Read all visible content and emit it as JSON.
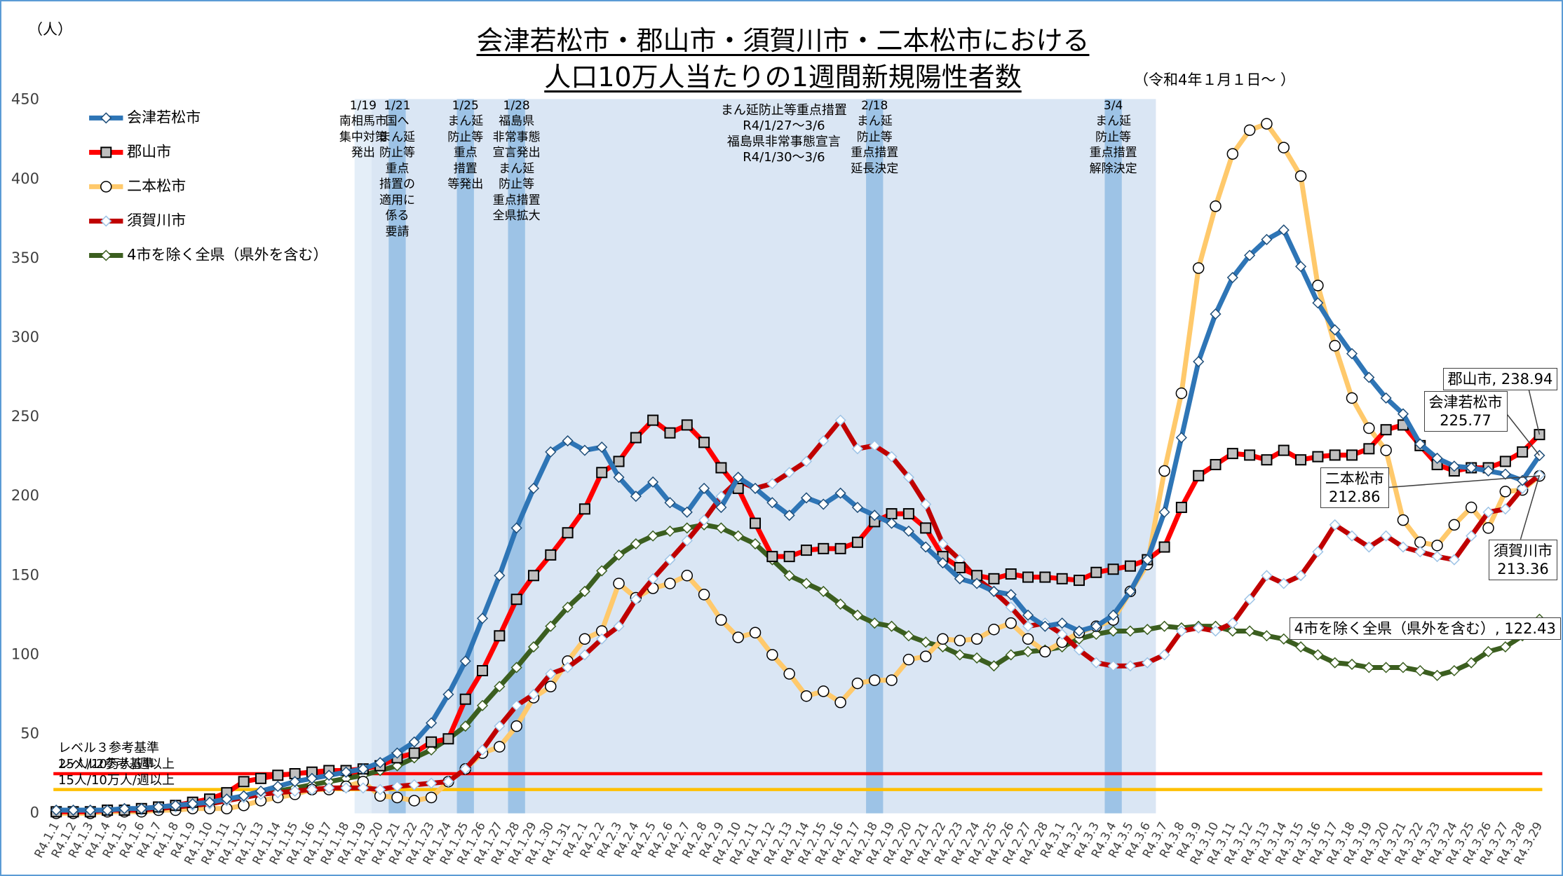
{
  "chart_data": {
    "type": "line",
    "title": "会津若松市・郡山市・須賀川市・二本松市における\n人口10万人当たりの1週間新規陽性者数",
    "subtitle": "（令和4年１月１日～ ）",
    "y_label": "（人）",
    "categories": [
      "R4.1.1",
      "R4.1.2",
      "R4.1.3",
      "R4.1.4",
      "R4.1.5",
      "R4.1.6",
      "R4.1.7",
      "R4.1.8",
      "R4.1.9",
      "R4.1.10",
      "R4.1.11",
      "R4.1.12",
      "R4.1.13",
      "R4.1.14",
      "R4.1.15",
      "R4.1.16",
      "R4.1.17",
      "R4.1.18",
      "R4.1.19",
      "R4.1.20",
      "R4.1.21",
      "R4.1.22",
      "R4.1.23",
      "R4.1.24",
      "R4.1.25",
      "R4.1.26",
      "R4.1.27",
      "R4.1.28",
      "R4.1.29",
      "R4.1.30",
      "R4.1.31",
      "R4.2.1",
      "R4.2.2",
      "R4.2.3",
      "R4.2.4",
      "R4.2.5",
      "R4.2.6",
      "R4.2.7",
      "R4.2.8",
      "R4.2.9",
      "R4.2.10",
      "R4.2.11",
      "R4.2.12",
      "R4.2.13",
      "R4.2.14",
      "R4.2.15",
      "R4.2.16",
      "R4.2.17",
      "R4.2.18",
      "R4.2.19",
      "R4.2.20",
      "R4.2.21",
      "R4.2.22",
      "R4.2.23",
      "R4.2.24",
      "R4.2.25",
      "R4.2.26",
      "R4.2.27",
      "R4.2.28",
      "R4.3.1",
      "R4.3.2",
      "R4.3.3",
      "R4.3.4",
      "R4.3.5",
      "R4.3.6",
      "R4.3.7",
      "R4.3.8",
      "R4.3.9",
      "R4.3.10",
      "R4.3.11",
      "R4.3.12",
      "R4.3.13",
      "R4.3.14",
      "R4.3.15",
      "R4.3.16",
      "R4.3.17",
      "R4.3.18",
      "R4.3.19",
      "R4.3.20",
      "R4.3.21",
      "R4.3.22",
      "R4.3.23",
      "R4.3.24",
      "R4.3.25",
      "R4.3.26",
      "R4.3.27",
      "R4.3.28",
      "R4.3.29"
    ],
    "series": [
      {
        "name": "会津若松市",
        "color": "#2e75b6",
        "marker": "diamond",
        "marker_fill": "#ffffff",
        "marker_stroke": "#1f4e79",
        "values": [
          2,
          2,
          2,
          2,
          3,
          3,
          4,
          5,
          6,
          7,
          9,
          11,
          14,
          17,
          20,
          22,
          24,
          26,
          28,
          32,
          38,
          45,
          57,
          75,
          96,
          123,
          150,
          180,
          205,
          228,
          235,
          229,
          231,
          212,
          200,
          209,
          196,
          190,
          205,
          193,
          212,
          205,
          196,
          188,
          199,
          195,
          202,
          193,
          188,
          183,
          178,
          168,
          158,
          148,
          145,
          140,
          138,
          125,
          118,
          120,
          115,
          118,
          125,
          140,
          160,
          190,
          237,
          285,
          315,
          338,
          352,
          362,
          368,
          345,
          322,
          305,
          290,
          275,
          262,
          252,
          233,
          224,
          219,
          218,
          216,
          214,
          210,
          225.77
        ],
        "value_labels": [
          null,
          null,
          null,
          null,
          null,
          null,
          null,
          null,
          null,
          null,
          null,
          null,
          null,
          null,
          null,
          null,
          null,
          null,
          null,
          null,
          null,
          null,
          null,
          null,
          null,
          null,
          null,
          null,
          null,
          null,
          null,
          null,
          null,
          null,
          null,
          null,
          null,
          null,
          null,
          null,
          null,
          null,
          null,
          null,
          null,
          null,
          null,
          null,
          null,
          null,
          null,
          null,
          null,
          null,
          null,
          null,
          null,
          null,
          null,
          null,
          null,
          null,
          null,
          null,
          null,
          null,
          null,
          null,
          null,
          null,
          null,
          null,
          null,
          null,
          null,
          null,
          null,
          null,
          null,
          null,
          null,
          null,
          null,
          null,
          null,
          null,
          null,
          "会津若松市\n225.77"
        ]
      },
      {
        "name": "郡山市",
        "color": "#ff0000",
        "marker": "square",
        "marker_fill": "#bfbfbf",
        "marker_stroke": "#000000",
        "values": [
          1,
          1,
          1,
          2,
          2,
          3,
          4,
          5,
          7,
          9,
          13,
          20,
          22,
          24,
          25,
          26,
          27,
          27,
          28,
          30,
          35,
          38,
          45,
          47,
          72,
          90,
          112,
          135,
          150,
          163,
          177,
          192,
          215,
          222,
          237,
          248,
          240,
          245,
          234,
          218,
          205,
          183,
          162,
          162,
          166,
          167,
          167,
          171,
          184,
          189,
          189,
          180,
          162,
          155,
          150,
          148,
          151,
          149,
          149,
          148,
          147,
          152,
          154,
          156,
          160,
          168,
          193,
          213,
          220,
          227,
          226,
          223,
          229,
          223,
          225,
          226,
          226,
          230,
          242,
          245,
          232,
          220,
          216,
          218,
          218,
          222,
          228,
          238.94
        ],
        "value_labels": [
          null,
          null,
          null,
          null,
          null,
          null,
          null,
          null,
          null,
          null,
          null,
          null,
          null,
          null,
          null,
          null,
          null,
          null,
          null,
          null,
          null,
          null,
          null,
          null,
          null,
          null,
          null,
          null,
          null,
          null,
          null,
          null,
          null,
          null,
          null,
          null,
          null,
          null,
          null,
          null,
          null,
          null,
          null,
          null,
          null,
          null,
          null,
          null,
          null,
          null,
          null,
          null,
          null,
          null,
          null,
          null,
          null,
          null,
          null,
          null,
          null,
          null,
          null,
          null,
          null,
          null,
          null,
          null,
          null,
          null,
          null,
          null,
          null,
          null,
          null,
          null,
          null,
          null,
          null,
          null,
          null,
          null,
          null,
          null,
          null,
          null,
          null,
          "郡山市, 238.94"
        ]
      },
      {
        "name": "二本松市",
        "color": "#ffc96b",
        "marker": "circle",
        "marker_fill": "#ffffff",
        "marker_stroke": "#000000",
        "values": [
          0,
          0,
          0,
          1,
          1,
          1,
          2,
          2,
          3,
          3,
          3,
          5,
          8,
          10,
          12,
          15,
          15,
          17,
          20,
          11,
          10,
          8,
          10,
          20,
          28,
          38,
          42,
          55,
          73,
          80,
          96,
          110,
          115,
          145,
          136,
          142,
          145,
          150,
          138,
          122,
          111,
          114,
          100,
          88,
          74,
          77,
          70,
          82,
          84,
          84,
          97,
          99,
          110,
          109,
          110,
          116,
          120,
          110,
          102,
          108,
          114,
          118,
          122,
          140,
          157,
          216,
          265,
          344,
          383,
          416,
          431,
          435,
          420,
          402,
          333,
          295,
          262,
          243,
          229,
          185,
          171,
          169,
          182,
          193,
          180,
          203,
          204,
          212.86
        ],
        "value_labels": [
          null,
          null,
          null,
          null,
          null,
          null,
          null,
          null,
          null,
          null,
          null,
          null,
          null,
          null,
          null,
          null,
          null,
          null,
          null,
          null,
          null,
          null,
          null,
          null,
          null,
          null,
          null,
          null,
          null,
          null,
          null,
          null,
          null,
          null,
          null,
          null,
          null,
          null,
          null,
          null,
          null,
          null,
          null,
          null,
          null,
          null,
          null,
          null,
          null,
          null,
          null,
          null,
          null,
          null,
          null,
          null,
          null,
          null,
          null,
          null,
          null,
          null,
          null,
          null,
          null,
          null,
          null,
          null,
          null,
          null,
          null,
          null,
          null,
          null,
          null,
          null,
          null,
          null,
          null,
          null,
          null,
          null,
          null,
          null,
          null,
          null,
          null,
          "二本松市\n212.86"
        ]
      },
      {
        "name": "須賀川市",
        "color": "#c00000",
        "marker": "diamond",
        "marker_fill": "#ffffff",
        "marker_stroke": "#9dc3e6",
        "values": [
          1,
          1,
          1,
          2,
          2,
          2,
          3,
          4,
          5,
          6,
          8,
          10,
          12,
          13,
          14,
          15,
          16,
          16,
          16,
          15,
          17,
          18,
          19,
          20,
          28,
          40,
          55,
          68,
          75,
          88,
          92,
          100,
          110,
          118,
          135,
          148,
          160,
          172,
          185,
          200,
          210,
          205,
          208,
          215,
          222,
          235,
          248,
          230,
          232,
          225,
          212,
          195,
          170,
          160,
          148,
          140,
          130,
          118,
          120,
          113,
          103,
          95,
          93,
          93,
          95,
          100,
          115,
          117,
          115,
          120,
          135,
          150,
          145,
          150,
          165,
          182,
          175,
          168,
          175,
          168,
          165,
          162,
          160,
          175,
          190,
          192,
          205,
          213.36
        ],
        "value_labels": [
          null,
          null,
          null,
          null,
          null,
          null,
          null,
          null,
          null,
          null,
          null,
          null,
          null,
          null,
          null,
          null,
          null,
          null,
          null,
          null,
          null,
          null,
          null,
          null,
          null,
          null,
          null,
          null,
          null,
          null,
          null,
          null,
          null,
          null,
          null,
          null,
          null,
          null,
          null,
          null,
          null,
          null,
          null,
          null,
          null,
          null,
          null,
          null,
          null,
          null,
          null,
          null,
          null,
          null,
          null,
          null,
          null,
          null,
          null,
          null,
          null,
          null,
          null,
          null,
          null,
          null,
          null,
          null,
          null,
          null,
          null,
          null,
          null,
          null,
          null,
          null,
          null,
          null,
          null,
          null,
          null,
          null,
          null,
          null,
          null,
          null,
          null,
          "須賀川市\n213.36"
        ]
      },
      {
        "name": "4市を除く全県（県外を含む）",
        "color": "#3b5e1f",
        "marker": "diamond",
        "marker_fill": "#ffffff",
        "marker_stroke": "#3b5e1f",
        "values": [
          1,
          1,
          1,
          1,
          2,
          2,
          3,
          4,
          5,
          6,
          8,
          10,
          12,
          14,
          16,
          18,
          20,
          22,
          24,
          27,
          30,
          35,
          40,
          47,
          55,
          68,
          80,
          92,
          105,
          118,
          130,
          140,
          153,
          163,
          170,
          175,
          178,
          180,
          182,
          180,
          175,
          170,
          160,
          150,
          145,
          140,
          132,
          125,
          120,
          118,
          112,
          108,
          105,
          100,
          98,
          93,
          100,
          102,
          103,
          105,
          110,
          113,
          115,
          115,
          116,
          118,
          117,
          118,
          118,
          115,
          115,
          112,
          110,
          105,
          100,
          95,
          94,
          92,
          92,
          92,
          90,
          87,
          90,
          95,
          102,
          105,
          112,
          122.43
        ],
        "value_labels": [
          null,
          null,
          null,
          null,
          null,
          null,
          null,
          null,
          null,
          null,
          null,
          null,
          null,
          null,
          null,
          null,
          null,
          null,
          null,
          null,
          null,
          null,
          null,
          null,
          null,
          null,
          null,
          null,
          null,
          null,
          null,
          null,
          null,
          null,
          null,
          null,
          null,
          null,
          null,
          null,
          null,
          null,
          null,
          null,
          null,
          null,
          null,
          null,
          null,
          null,
          null,
          null,
          null,
          null,
          null,
          null,
          null,
          null,
          null,
          null,
          null,
          null,
          null,
          null,
          null,
          null,
          null,
          null,
          null,
          null,
          null,
          null,
          null,
          null,
          null,
          null,
          null,
          null,
          null,
          null,
          null,
          null,
          null,
          null,
          null,
          null,
          null,
          "4市を除く全県（県外を含む）, 122.43"
        ]
      }
    ],
    "ylim": [
      0,
      450
    ],
    "yticks": [
      0,
      50,
      100,
      150,
      200,
      250,
      300,
      350,
      400,
      450
    ],
    "grid": false,
    "legend": "upper left",
    "reference_lines": [
      {
        "value": 25,
        "color": "#ff0000",
        "label": "レベル３参考基準\n25人/10万人/週以上"
      },
      {
        "value": 15,
        "color": "#ffc000",
        "label": "レベル2参考基準\n15人/10万人/週以上"
      }
    ],
    "annotations": [
      {
        "at": "R4.1.19",
        "color": "#e4eef8",
        "text": "1/19\n南相馬市\n集中対策\n発出"
      },
      {
        "at": "R4.1.21",
        "color": "#9dc3e6",
        "text": "1/21\n国へ\nまん延\n防止等\n重点\n措置の\n適用に\n係る\n要請"
      },
      {
        "at": "R4.1.25",
        "color": "#9dc3e6",
        "text": "1/25\nまん延\n防止等\n重点\n措置\n等発出"
      },
      {
        "at": "R4.1.28",
        "color": "#9dc3e6",
        "text": "1/28\n福島県\n非常事態\n宣言発出\nまん延\n防止等\n重点措置\n全県拡大"
      },
      {
        "text": "まん延防止等重点措置\nR4/1/27～3/6\n福島県非常事態宣言\nR4/1/30～3/6"
      },
      {
        "at": "R4.2.18",
        "color": "#9dc3e6",
        "text": "2/18\nまん延\n防止等\n重点措置\n延長決定"
      },
      {
        "at": "R4.3.4",
        "color": "#9dc3e6",
        "text": "3/4\nまん延\n防止等\n重点措置\n解除決定"
      }
    ]
  }
}
